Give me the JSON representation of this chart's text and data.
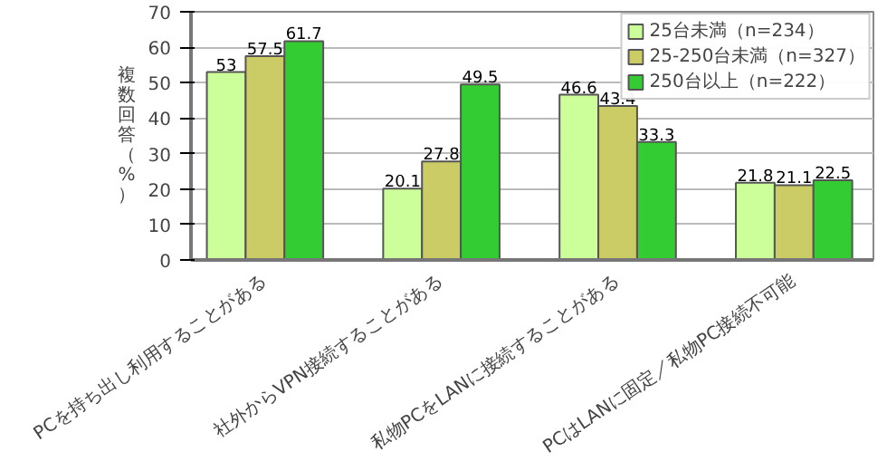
{
  "chart_data": {
    "type": "bar",
    "ylabel": "複数回答（%）",
    "categories": [
      "PCを持ち出し利用することがある",
      "社外からVPN接続することがある",
      "私物PCをLANに接続することがある",
      "PCはLANに固定／私物PC接続不可能"
    ],
    "series": [
      {
        "name": "25台未満（n=234）",
        "color": "#ccff99",
        "values": [
          53,
          20.1,
          46.6,
          21.8
        ]
      },
      {
        "name": "25-250台未満（n=327）",
        "color": "#cccc66",
        "values": [
          57.5,
          27.8,
          43.4,
          21.1
        ]
      },
      {
        "name": "250台以上（n=222）",
        "color": "#33cc33",
        "values": [
          61.7,
          49.5,
          33.3,
          22.5
        ]
      }
    ],
    "ylim": [
      0,
      70
    ],
    "yticks": [
      0,
      10,
      20,
      30,
      40,
      50,
      60,
      70
    ],
    "grid": "y",
    "legend": "top right",
    "data_labels": true
  }
}
